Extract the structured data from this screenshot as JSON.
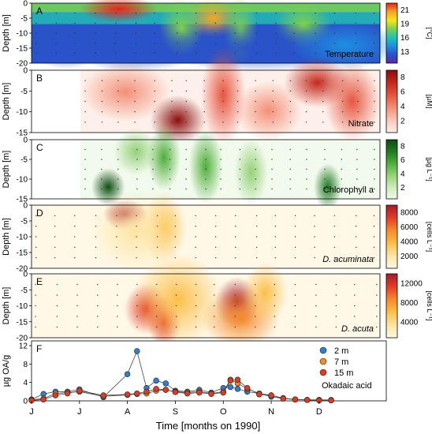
{
  "figure": {
    "x_axis_label": "Time [months on 1990]",
    "months": [
      "J",
      "J",
      "A",
      "S",
      "O",
      "N",
      "D"
    ]
  },
  "panels": [
    {
      "letter": "A",
      "variable": "Temperature",
      "italic": false,
      "ylabel": "Depth [m]",
      "yticks": [
        "0",
        "-5",
        "-10",
        "-15",
        "-20"
      ],
      "ylim": [
        -20,
        0
      ],
      "colorbar": {
        "unit": "[°C]",
        "ticks": [
          "21",
          "19",
          "16",
          "13"
        ],
        "colors": [
          "#e8221e",
          "#f5a623",
          "#f7e51c",
          "#7dd04f",
          "#22c3b4",
          "#1e8fe0",
          "#2a52c9",
          "#5a2ca0"
        ]
      }
    },
    {
      "letter": "B",
      "variable": "Nitrate",
      "italic": false,
      "ylabel": "Depth [m]",
      "yticks": [
        "0",
        "-5",
        "-10",
        "-15"
      ],
      "ylim": [
        -15,
        0
      ],
      "colorbar": {
        "unit": "[µM]",
        "ticks": [
          "8",
          "6",
          "4",
          "2"
        ],
        "colors": [
          "#8c0d0d",
          "#c4281d",
          "#e6553f",
          "#f39078",
          "#f9c7b8",
          "#fdf0ea"
        ]
      }
    },
    {
      "letter": "C",
      "variable": "Chlorophyll a",
      "italic": false,
      "ylabel": "Depth [m]",
      "yticks": [
        "0",
        "-5",
        "-10",
        "-15"
      ],
      "ylim": [
        -15,
        0
      ],
      "colorbar": {
        "unit": "[µg L⁻¹]",
        "ticks": [
          "8",
          "6",
          "4",
          "2"
        ],
        "colors": [
          "#0e4d12",
          "#1f7a22",
          "#4fae3b",
          "#94d178",
          "#cdebb9",
          "#f1faec"
        ]
      }
    },
    {
      "letter": "D",
      "variable": "D. acuminata",
      "italic": true,
      "ylabel": "Depth [m]",
      "yticks": [
        "0",
        "-5",
        "-10",
        "-15",
        "-20"
      ],
      "ylim": [
        -20,
        0
      ],
      "colorbar": {
        "unit": "[cells L⁻¹]",
        "ticks": [
          "8000",
          "6000",
          "4000",
          "2000"
        ],
        "colors": [
          "#a51c2a",
          "#e03c2a",
          "#f58a2b",
          "#fbbf4a",
          "#fde4a3",
          "#fff8e6"
        ]
      }
    },
    {
      "letter": "E",
      "variable": "D. acuta",
      "italic": true,
      "ylabel": "Depth [m]",
      "yticks": [
        "0",
        "-5",
        "-10",
        "-15",
        "-20"
      ],
      "ylim": [
        -20,
        0
      ],
      "colorbar": {
        "unit": "[cells L⁻¹]",
        "ticks": [
          "12000",
          "8000",
          "4000"
        ],
        "colors": [
          "#a51c2a",
          "#e03c2a",
          "#f58a2b",
          "#fbbf4a",
          "#fde4a3",
          "#fff8e6"
        ]
      }
    }
  ],
  "chart_data": {
    "type": "line",
    "letter": "F",
    "ylabel": "µg OA/g",
    "yticks": [
      "0",
      "4",
      "8",
      "12"
    ],
    "ylim": [
      0,
      12
    ],
    "annotation": "Okadaic acid",
    "x_unit": "month index (0 = start of June 1990)",
    "xlim": [
      0,
      7.4
    ],
    "x": [
      0.0,
      0.25,
      0.5,
      0.75,
      1.0,
      1.5,
      2.0,
      2.2,
      2.4,
      2.6,
      2.8,
      3.0,
      3.25,
      3.5,
      3.75,
      4.0,
      4.15,
      4.3,
      4.5,
      4.75,
      5.0,
      5.25,
      5.5,
      5.75,
      6.0,
      6.25
    ],
    "series": [
      {
        "name": "2 m",
        "color": "#2e7fcf",
        "values": [
          0.3,
          1.5,
          2.0,
          2.0,
          2.5,
          0.8,
          5.8,
          10.8,
          2.8,
          4.4,
          3.8,
          2.2,
          2.0,
          2.4,
          1.8,
          2.8,
          3.0,
          2.6,
          2.0,
          1.6,
          0.9,
          0.5,
          0.3,
          0.2,
          0.2,
          0.2
        ]
      },
      {
        "name": "7 m",
        "color": "#f28c28",
        "values": [
          0.2,
          0.5,
          1.6,
          1.8,
          2.0,
          1.0,
          1.3,
          1.5,
          1.6,
          2.2,
          2.4,
          2.0,
          1.8,
          2.0,
          1.6,
          2.0,
          4.6,
          3.8,
          2.6,
          1.6,
          1.2,
          0.6,
          0.3,
          0.2,
          0.2,
          0.1
        ]
      },
      {
        "name": "15 m",
        "color": "#e03a22",
        "values": [
          0.1,
          0.3,
          1.2,
          1.6,
          2.2,
          1.2,
          1.4,
          1.6,
          2.0,
          2.6,
          2.4,
          1.9,
          1.6,
          1.8,
          1.5,
          1.8,
          4.4,
          4.6,
          2.8,
          1.4,
          1.2,
          0.5,
          0.3,
          0.2,
          0.1,
          0.1
        ]
      }
    ]
  }
}
